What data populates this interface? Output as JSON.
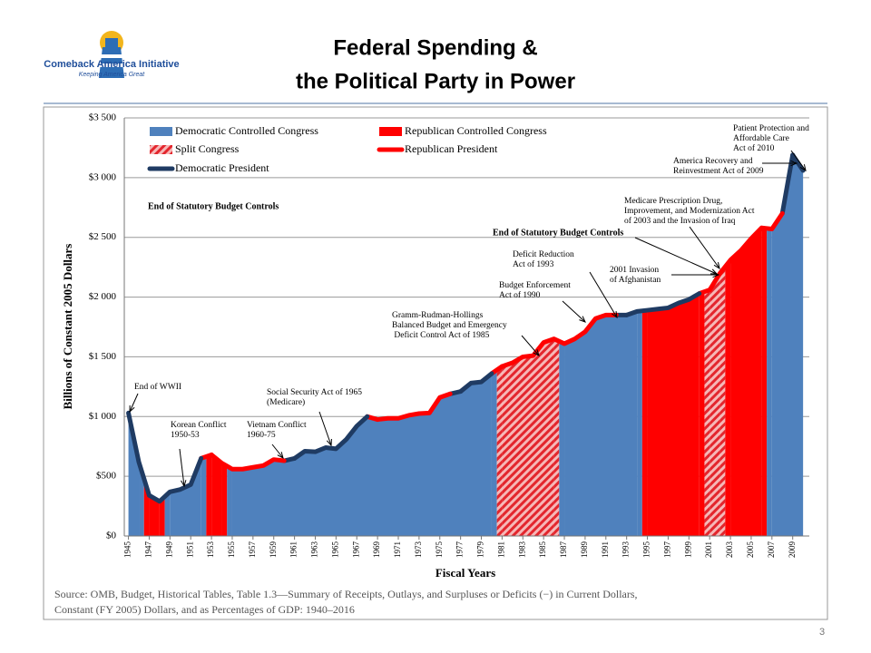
{
  "header": {
    "logo_name": "Comeback America Initiative",
    "logo_tagline": "Keeping America Great"
  },
  "chart_data": {
    "type": "area-line",
    "title": [
      "Federal Spending &",
      "the Political Party in Power"
    ],
    "y_label": "Billions of Constant 2005 Dollars",
    "x_label": "Fiscal Years",
    "x": [
      1945,
      1946,
      1947,
      1948,
      1949,
      1950,
      1951,
      1952,
      1953,
      1954,
      1955,
      1956,
      1957,
      1958,
      1959,
      1960,
      1961,
      1962,
      1963,
      1964,
      1965,
      1966,
      1967,
      1968,
      1969,
      1970,
      1971,
      1972,
      1973,
      1974,
      1975,
      1976,
      1977,
      1978,
      1979,
      1980,
      1981,
      1982,
      1983,
      1984,
      1985,
      1986,
      1987,
      1988,
      1989,
      1990,
      1991,
      1992,
      1993,
      1994,
      1995,
      1996,
      1997,
      1998,
      1999,
      2000,
      2001,
      2002,
      2003,
      2004,
      2005,
      2006,
      2007,
      2008,
      2009,
      2010
    ],
    "series": [
      {
        "name": "Democratic Controlled Congress",
        "kind": "area",
        "color": "#4f81bd",
        "values": [
          1030,
          620,
          null,
          null,
          370,
          390,
          430,
          650,
          null,
          null,
          560,
          560,
          575,
          590,
          640,
          630,
          650,
          710,
          705,
          740,
          730,
          810,
          920,
          1000,
          975,
          985,
          985,
          1010,
          1025,
          1030,
          1160,
          1190,
          1210,
          1280,
          1290,
          1360,
          null,
          null,
          null,
          null,
          null,
          null,
          1610,
          1650,
          1710,
          1820,
          1850,
          1850,
          1850,
          1880,
          null,
          null,
          null,
          null,
          null,
          null,
          null,
          null,
          null,
          null,
          null,
          null,
          2570,
          2700,
          3190,
          3060
        ]
      },
      {
        "name": "Republican Controlled Congress",
        "kind": "area",
        "color": "#ff0000",
        "values": [
          null,
          null,
          340,
          290,
          null,
          null,
          null,
          null,
          680,
          610,
          null,
          null,
          null,
          null,
          null,
          null,
          null,
          null,
          null,
          null,
          null,
          null,
          null,
          null,
          null,
          null,
          null,
          null,
          null,
          null,
          null,
          null,
          null,
          null,
          null,
          null,
          null,
          null,
          null,
          null,
          null,
          null,
          null,
          null,
          null,
          null,
          null,
          null,
          null,
          null,
          1890,
          1900,
          1910,
          1950,
          1980,
          2030,
          null,
          null,
          2310,
          2390,
          2490,
          2580,
          null,
          null,
          null,
          null
        ]
      },
      {
        "name": "Split Congress",
        "kind": "area",
        "color": "#e3262d",
        "pattern": "hatch",
        "values": [
          null,
          null,
          null,
          null,
          null,
          null,
          null,
          null,
          null,
          null,
          null,
          null,
          null,
          null,
          null,
          null,
          null,
          null,
          null,
          null,
          null,
          null,
          null,
          null,
          null,
          null,
          null,
          null,
          null,
          null,
          null,
          null,
          null,
          null,
          null,
          null,
          1420,
          1450,
          1500,
          1510,
          1620,
          1650,
          null,
          null,
          null,
          null,
          null,
          null,
          null,
          null,
          null,
          null,
          null,
          null,
          null,
          null,
          2060,
          2200,
          null,
          null,
          null,
          null,
          null,
          null,
          null,
          null
        ]
      },
      {
        "name": "Republican President",
        "kind": "line",
        "color": "#ff0000",
        "values": [
          null,
          null,
          null,
          null,
          null,
          null,
          null,
          null,
          680,
          610,
          560,
          560,
          575,
          590,
          640,
          630,
          null,
          null,
          null,
          null,
          null,
          null,
          null,
          null,
          975,
          985,
          985,
          1010,
          1025,
          1030,
          1160,
          1190,
          null,
          null,
          null,
          null,
          1420,
          1450,
          1500,
          1510,
          1620,
          1650,
          1610,
          1650,
          1710,
          1820,
          1850,
          1850,
          null,
          null,
          null,
          null,
          null,
          null,
          null,
          null,
          2060,
          2200,
          2310,
          2390,
          2490,
          2580,
          2570,
          2700,
          null,
          null
        ]
      },
      {
        "name": "Democratic President",
        "kind": "line",
        "color": "#1f3b63",
        "values": [
          1030,
          620,
          340,
          290,
          370,
          390,
          430,
          650,
          null,
          null,
          null,
          null,
          null,
          null,
          null,
          null,
          650,
          710,
          705,
          740,
          730,
          810,
          920,
          1000,
          null,
          null,
          null,
          null,
          null,
          null,
          null,
          null,
          1210,
          1280,
          1290,
          1360,
          null,
          null,
          null,
          null,
          null,
          null,
          null,
          null,
          null,
          null,
          null,
          null,
          1850,
          1880,
          1890,
          1900,
          1910,
          1950,
          1980,
          2030,
          null,
          null,
          null,
          null,
          null,
          null,
          null,
          null,
          3190,
          3060
        ]
      }
    ],
    "xlim": [
      1944.6,
      2010.6
    ],
    "xticks": [
      1945,
      1947,
      1949,
      1951,
      1953,
      1955,
      1957,
      1959,
      1961,
      1963,
      1965,
      1967,
      1969,
      1971,
      1973,
      1975,
      1977,
      1979,
      1981,
      1983,
      1985,
      1987,
      1989,
      1991,
      1993,
      1995,
      1997,
      1999,
      2001,
      2003,
      2005,
      2007,
      2009
    ],
    "ylim": [
      0,
      3500
    ],
    "yticks": [
      {
        "value": 0,
        "label": "$0"
      },
      {
        "value": 500,
        "label": "$500"
      },
      {
        "value": 1000,
        "label": "$1 000"
      },
      {
        "value": 1500,
        "label": "$1 500"
      },
      {
        "value": 2000,
        "label": "$2 000"
      },
      {
        "value": 2500,
        "label": "$2 500"
      },
      {
        "value": 3000,
        "label": "$3 000"
      },
      {
        "value": 3500,
        "label": "$3 500"
      }
    ],
    "grid": true,
    "annotations": [
      {
        "lines": [
          "End of WWII"
        ]
      },
      {
        "lines": [
          "Korean Conflict",
          "1950-53"
        ]
      },
      {
        "lines": [
          "Vietnam Conflict",
          "1960-75"
        ]
      },
      {
        "lines": [
          "Social Security Act of 1965",
          "(Medicare)"
        ]
      },
      {
        "lines": [
          "Gramm-Rudman-Hollings",
          "Balanced Budget and Emergency",
          " Deficit Control Act of 1985"
        ]
      },
      {
        "lines": [
          "Budget Enforcement",
          "Act of 1990"
        ]
      },
      {
        "lines": [
          "Deficit Reduction",
          "Act of 1993"
        ]
      },
      {
        "lines": [
          "2001 Invasion",
          "of Afghanistan"
        ]
      },
      {
        "lines": [
          "Medicare Prescription Drug,",
          "Improvement, and Modernization Act",
          "of 2003 and the Invasion of Iraq"
        ]
      },
      {
        "lines": [
          "America Recovery and",
          "Reinvestment Act of 2009"
        ]
      },
      {
        "lines": [
          "Patient Protection and",
          "Affordable Care",
          "Act of 2010"
        ]
      },
      {
        "lines": [
          "End of Statutory Budget Controls"
        ]
      },
      {
        "lines": [
          "End of Statutory Budget Controls"
        ]
      }
    ],
    "source": [
      "Source: OMB, Budget, Historical Tables, Table 1.3—Summary of Receipts, Outlays, and Surpluses or Deficits (−) in Current Dollars,",
      " Constant (FY 2005) Dollars, and as Percentages of GDP: 1940–2016"
    ]
  },
  "footer": {
    "page_number": "3"
  }
}
